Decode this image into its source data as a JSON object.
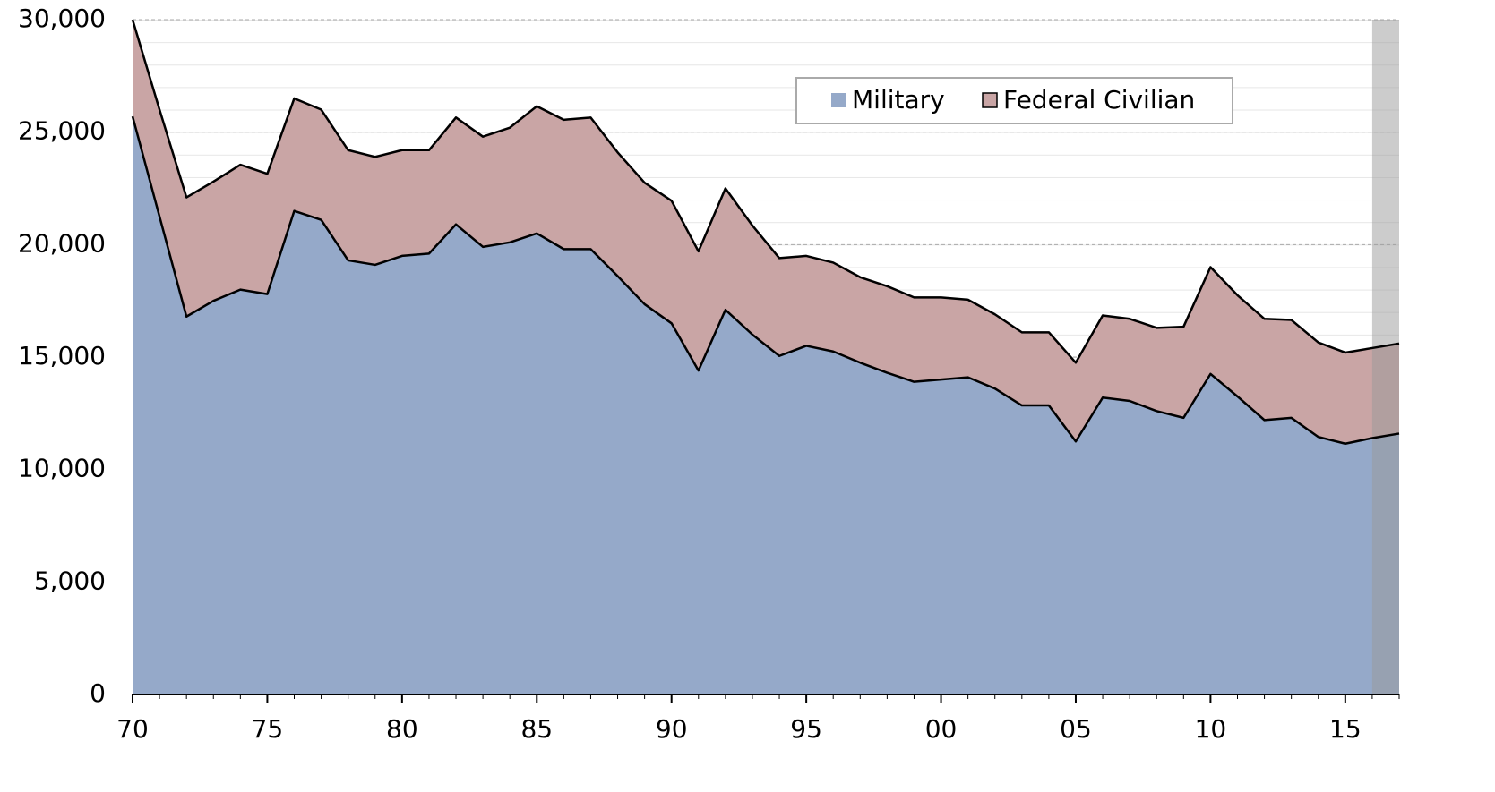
{
  "chart_data": {
    "type": "stacked_area",
    "x": [
      1970,
      1971,
      1972,
      1973,
      1974,
      1975,
      1976,
      1977,
      1978,
      1979,
      1980,
      1981,
      1982,
      1983,
      1984,
      1985,
      1986,
      1987,
      1988,
      1989,
      1990,
      1991,
      1992,
      1993,
      1994,
      1995,
      1996,
      1997,
      1998,
      1999,
      2000,
      2001,
      2002,
      2003,
      2004,
      2005,
      2006,
      2007,
      2008,
      2009,
      2010,
      2011,
      2012,
      2013,
      2014,
      2015,
      2016,
      2017
    ],
    "series": [
      {
        "name": "Military",
        "color": "#95a9c9",
        "values": [
          25700,
          21250,
          16800,
          17500,
          18000,
          17800,
          21500,
          21100,
          19300,
          19100,
          19500,
          19600,
          20900,
          19900,
          20100,
          20500,
          19800,
          19800,
          18600,
          17350,
          16500,
          14400,
          17100,
          16000,
          15050,
          15500,
          15250,
          14750,
          14300,
          13900,
          14000,
          14100,
          13600,
          12850,
          12850,
          11250,
          13200,
          13050,
          12600,
          12300,
          14250,
          13250,
          12200,
          12300,
          11450,
          11150,
          11400,
          11600
        ]
      },
      {
        "name": "Federal Civilian",
        "color": "#c9a5a5",
        "values": [
          4300,
          4750,
          5300,
          5300,
          5550,
          5350,
          5000,
          4900,
          4900,
          4800,
          4700,
          4600,
          4750,
          4900,
          5100,
          5650,
          5750,
          5850,
          5500,
          5400,
          5450,
          5300,
          5400,
          4850,
          4350,
          4000,
          3950,
          3800,
          3850,
          3750,
          3650,
          3450,
          3300,
          3250,
          3250,
          3500,
          3650,
          3650,
          3700,
          4050,
          4750,
          4500,
          4500,
          4350,
          4200,
          4050,
          4000,
          4000
        ]
      }
    ],
    "xlim": [
      1970,
      2017
    ],
    "xticks": [
      {
        "value": 1970,
        "label": "70"
      },
      {
        "value": 1975,
        "label": "75"
      },
      {
        "value": 1980,
        "label": "80"
      },
      {
        "value": 1985,
        "label": "85"
      },
      {
        "value": 1990,
        "label": "90"
      },
      {
        "value": 1995,
        "label": "95"
      },
      {
        "value": 2000,
        "label": "00"
      },
      {
        "value": 2005,
        "label": "05"
      },
      {
        "value": 2010,
        "label": "10"
      },
      {
        "value": 2015,
        "label": "15"
      }
    ],
    "ylim": [
      0,
      30000
    ],
    "yticks": [
      0,
      {
        "value": 5000,
        "label": "5,000"
      },
      {
        "value": 10000,
        "label": "10,000"
      },
      {
        "value": 15000,
        "label": "15,000"
      },
      {
        "value": 20000,
        "label": "20,000"
      },
      {
        "value": 25000,
        "label": "25,000"
      },
      {
        "value": 30000,
        "label": "30,000"
      }
    ],
    "grid": true,
    "highlight_xrange": [
      2016,
      2017
    ],
    "legend": "top-right"
  }
}
